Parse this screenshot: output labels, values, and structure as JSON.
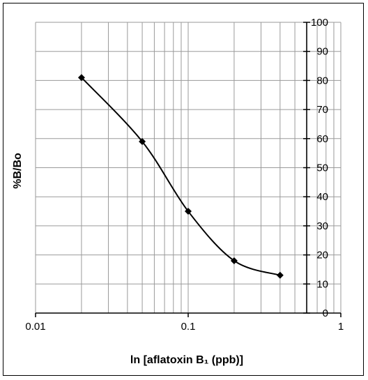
{
  "chart_data": {
    "type": "line",
    "title": "",
    "xlabel": "ln [aflatoxin B₁ (ppb)]",
    "ylabel": "%B/Bo",
    "x_scale": "log",
    "xlim": [
      0.01,
      1
    ],
    "ylim": [
      0,
      100
    ],
    "x_tick_labels": [
      "0.01",
      "0.1",
      "1"
    ],
    "x_tick_values": [
      0.01,
      0.1,
      1
    ],
    "y_tick_values": [
      0,
      10,
      20,
      30,
      40,
      50,
      60,
      70,
      80,
      90,
      100
    ],
    "y_tick_labels": [
      "0",
      "10",
      "20",
      "30",
      "40",
      "50",
      "60",
      "70",
      "80",
      "90",
      "100"
    ],
    "y_axis_position": "right",
    "grid": true,
    "series": [
      {
        "x": [
          0.02,
          0.05,
          0.1,
          0.2,
          0.4
        ],
        "y": [
          81,
          59,
          35,
          18,
          13
        ],
        "marker": "diamond",
        "smooth": true,
        "color": "#000000"
      }
    ]
  }
}
